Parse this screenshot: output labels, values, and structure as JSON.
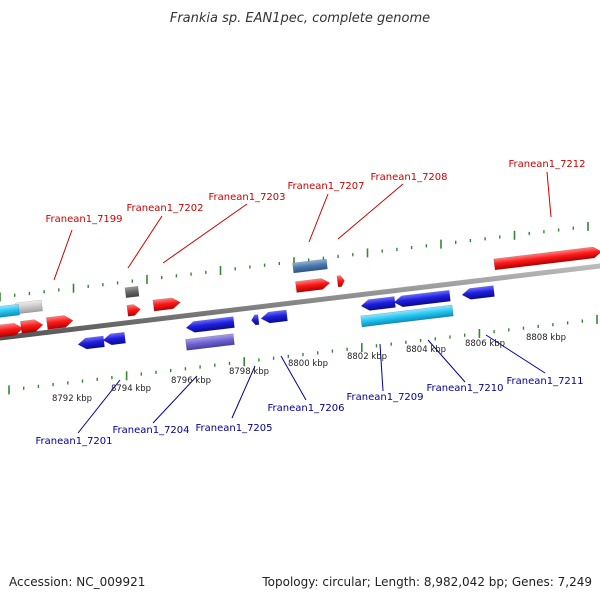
{
  "title": "Frankia sp. EAN1pec, complete genome",
  "footer": {
    "accession": "Accession: NC_009921",
    "summary": "Topology: circular; Length: 8,982,042 bp; Genes: 7,249"
  },
  "colors": {
    "forward_label": "#cc0000",
    "reverse_label": "#000099",
    "tick": "#338833",
    "backbone": "#888888"
  },
  "scale_labels": [
    "8792 kbp",
    "8794 kbp",
    "8796 kbp",
    "8798 kbp",
    "8800 kbp",
    "8802 kbp",
    "8804 kbp",
    "8806 kbp",
    "8808 kbp"
  ],
  "forward_genes": [
    "Franean1_7199",
    "Franean1_7202",
    "Franean1_7203",
    "Franean1_7207",
    "Franean1_7208",
    "Franean1_7212"
  ],
  "reverse_genes": [
    "Franean1_7201",
    "Franean1_7204",
    "Franean1_7205",
    "Franean1_7206",
    "Franean1_7209",
    "Franean1_7210",
    "Franean1_7211"
  ]
}
